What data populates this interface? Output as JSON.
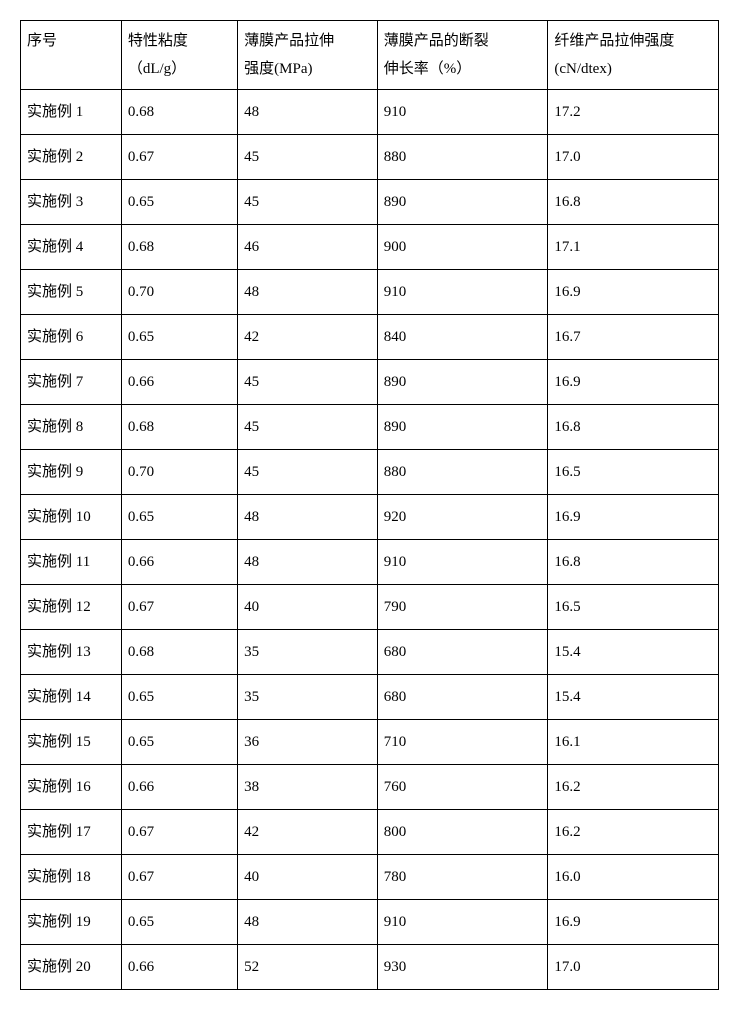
{
  "table": {
    "type": "table",
    "background_color": "#ffffff",
    "border_color": "#000000",
    "text_color": "#000000",
    "font_family": "SimSun",
    "header_fontsize": 15,
    "cell_fontsize": 15,
    "columns": [
      {
        "line1": "序号",
        "line2": ""
      },
      {
        "line1": "特性粘度",
        "line2": "（dL/g）"
      },
      {
        "line1": "薄膜产品拉伸",
        "line2": "强度(MPa)"
      },
      {
        "line1": "薄膜产品的断裂",
        "line2": "伸长率（%）"
      },
      {
        "line1": "纤维产品拉伸强度",
        "line2": "(cN/dtex)"
      }
    ],
    "column_widths_pct": [
      13,
      15,
      18,
      22,
      22
    ],
    "rows": [
      [
        "实施例 1",
        "0.68",
        "48",
        "910",
        "17.2"
      ],
      [
        "实施例 2",
        "0.67",
        "45",
        "880",
        "17.0"
      ],
      [
        "实施例 3",
        "0.65",
        "45",
        "890",
        "16.8"
      ],
      [
        "实施例 4",
        "0.68",
        "46",
        "900",
        "17.1"
      ],
      [
        "实施例 5",
        "0.70",
        "48",
        "910",
        "16.9"
      ],
      [
        "实施例 6",
        "0.65",
        "42",
        "840",
        "16.7"
      ],
      [
        "实施例 7",
        "0.66",
        "45",
        "890",
        "16.9"
      ],
      [
        "实施例 8",
        "0.68",
        "45",
        "890",
        "16.8"
      ],
      [
        "实施例 9",
        "0.70",
        "45",
        "880",
        "16.5"
      ],
      [
        "实施例 10",
        "0.65",
        "48",
        "920",
        "16.9"
      ],
      [
        "实施例 11",
        "0.66",
        "48",
        "910",
        "16.8"
      ],
      [
        "实施例 12",
        "0.67",
        "40",
        "790",
        "16.5"
      ],
      [
        "实施例 13",
        "0.68",
        "35",
        "680",
        "15.4"
      ],
      [
        "实施例 14",
        "0.65",
        "35",
        "680",
        "15.4"
      ],
      [
        "实施例 15",
        "0.65",
        "36",
        "710",
        "16.1"
      ],
      [
        "实施例 16",
        "0.66",
        "38",
        "760",
        "16.2"
      ],
      [
        "实施例 17",
        "0.67",
        "42",
        "800",
        "16.2"
      ],
      [
        "实施例 18",
        "0.67",
        "40",
        "780",
        "16.0"
      ],
      [
        "实施例 19",
        "0.65",
        "48",
        "910",
        "16.9"
      ],
      [
        "实施例 20",
        "0.66",
        "52",
        "930",
        "17.0"
      ]
    ]
  }
}
